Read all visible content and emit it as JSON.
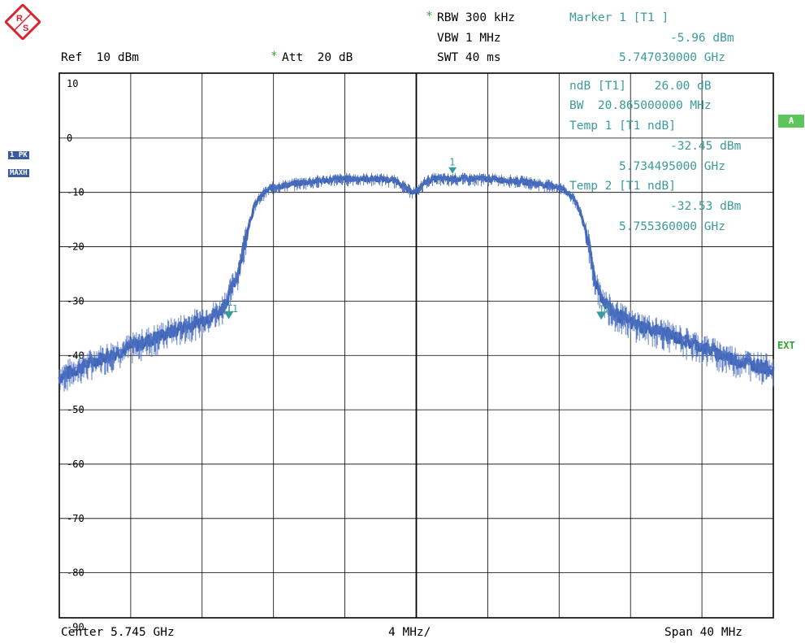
{
  "header": {
    "rbw_star": "*",
    "rbw": "RBW 300 kHz",
    "vbw": "VBW 1 MHz",
    "swt": "SWT 40 ms",
    "ref": "Ref  10 dBm",
    "att_star": "*",
    "att": "Att  20 dB",
    "marker_title": "Marker 1 [T1 ]",
    "marker_level": "-5.96 dBm",
    "marker_freq": "5.747030000 GHz"
  },
  "overlay": {
    "ndb": "ndB [T1]    26.00 dB",
    "bw": "BW  20.865000000 MHz",
    "temp1": "Temp 1 [T1 ndB]",
    "temp1_level": "-32.45 dBm",
    "temp1_freq": "5.734495000 GHz",
    "temp2": "Temp 2 [T1 ndB]",
    "temp2_level": "-32.53 dBm",
    "temp2_freq": "5.755360000 GHz"
  },
  "side": {
    "trace_mode1": "1 PK",
    "trace_mode2": "MAXH",
    "badge_a": "A",
    "ext": "EXT"
  },
  "footer": {
    "center": "Center 5.745 GHz",
    "div": "4 MHz/",
    "span": "Span 40 MHz"
  },
  "marker_labels": {
    "m1": "1",
    "t1": "T1",
    "t2": "T2"
  },
  "colors": {
    "trace": "#3a5fb0",
    "teal": "#3b9a9a",
    "green": "#5cc65c",
    "logo": "#d9262e"
  },
  "chart_data": {
    "type": "line",
    "title": "",
    "xlabel": "",
    "ylabel": "",
    "x_unit": "MHz offset from center",
    "xlim": [
      -20,
      20
    ],
    "ylim": [
      -95,
      15
    ],
    "y_ticks": [
      10,
      0,
      -10,
      -20,
      -30,
      -40,
      -50,
      -60,
      -70,
      -80,
      -90
    ],
    "y_tick_labels": [
      "10",
      "0",
      "-10",
      "-20",
      "-30",
      "-40",
      "-50",
      "-60",
      "-70",
      "-80",
      "-90"
    ],
    "grid": true,
    "series": [
      {
        "x": [
          -20,
          -18,
          -16,
          -14,
          -12,
          -11,
          -10.5,
          -10,
          -9.4,
          -9,
          -8.5,
          -8,
          -6,
          -4,
          -2,
          -1,
          -0.5,
          0,
          0.5,
          1,
          2,
          4,
          6,
          8,
          8.5,
          9,
          9.5,
          10,
          10.5,
          11,
          12,
          14,
          16,
          18,
          20
        ],
        "y": [
          -44,
          -41,
          -38.5,
          -36,
          -33.5,
          -32,
          -29,
          -25,
          -16,
          -12,
          -10,
          -9,
          -8,
          -7.5,
          -7.5,
          -8,
          -9.5,
          -10,
          -8,
          -7.5,
          -7.5,
          -7.5,
          -8,
          -9,
          -10,
          -12,
          -17,
          -26,
          -30,
          -32,
          -34,
          -36,
          -38.5,
          -41,
          -42.5
        ]
      }
    ],
    "markers": [
      {
        "label": "1",
        "x": 2.03,
        "y": -5.96
      },
      {
        "label": "T1",
        "x": -10.505,
        "y": -32.45
      },
      {
        "label": "T2",
        "x": 10.36,
        "y": -32.53
      }
    ]
  }
}
